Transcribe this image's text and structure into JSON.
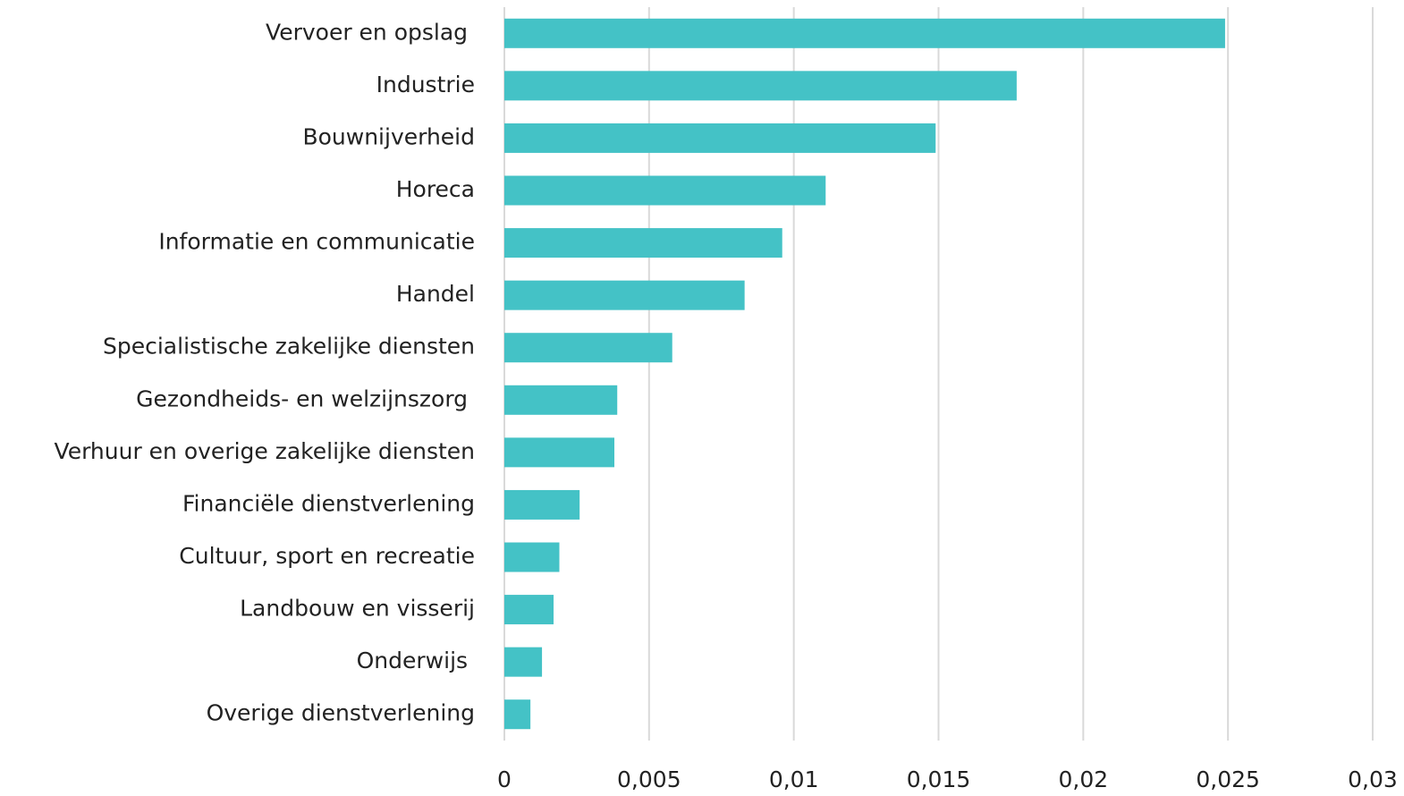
{
  "chart_data": {
    "type": "hbar",
    "categories": [
      "Vervoer en opslag ",
      "Industrie",
      "Bouwnijverheid",
      "Horeca",
      "Informatie en communicatie",
      "Handel",
      "Specialistische zakelijke diensten",
      "Gezondheids- en welzijnszorg ",
      "Verhuur en overige zakelijke diensten",
      "Financiële dienstverlening",
      "Cultuur, sport en recreatie",
      "Landbouw en visserij",
      "Onderwijs ",
      "Overige dienstverlening"
    ],
    "values": [
      0.0249,
      0.0177,
      0.0149,
      0.0111,
      0.0096,
      0.0083,
      0.0058,
      0.0039,
      0.0038,
      0.0026,
      0.0019,
      0.0017,
      0.0013,
      0.0009
    ],
    "color": "#44c2c6",
    "xlim": [
      0,
      0.03
    ],
    "xticks": [
      0,
      {
        "value": 0.005,
        "label": "0,005"
      },
      {
        "value": 0.01,
        "label": "0,01"
      },
      {
        "value": 0.015,
        "label": "0,015"
      },
      {
        "value": 0.02,
        "label": "0,02"
      },
      {
        "value": 0.025,
        "label": "0,025"
      },
      {
        "value": 0.03,
        "label": "0,03"
      }
    ],
    "grid": true
  }
}
